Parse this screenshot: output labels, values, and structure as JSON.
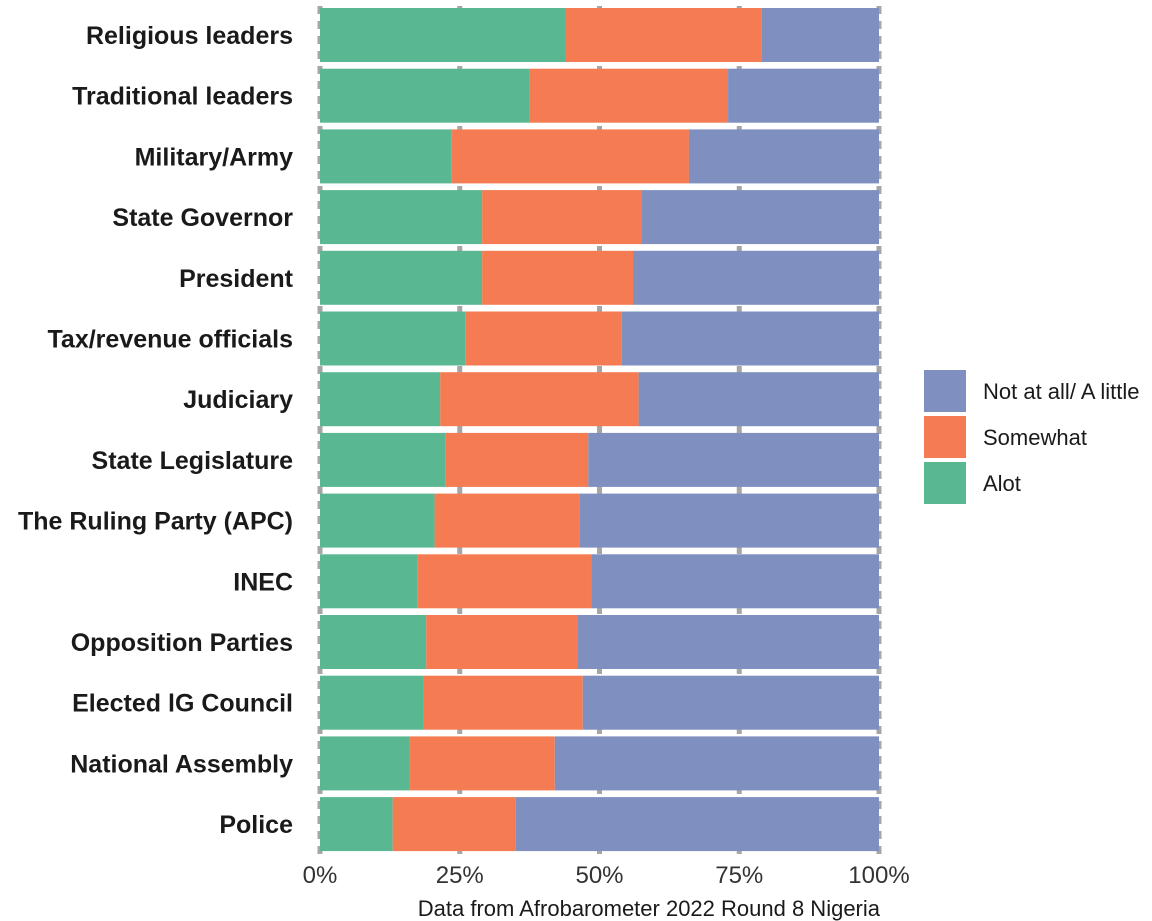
{
  "chart_data": {
    "type": "bar",
    "orientation": "horizontal",
    "stacked": "percent",
    "categories": [
      "Religious leaders",
      "Traditional leaders",
      "Military/Army",
      "State Governor",
      "President",
      "Tax/revenue officials",
      "Judiciary",
      "State Legislature",
      "The Ruling Party (APC)",
      "INEC",
      "Opposition Parties",
      "Elected lG Council",
      "National Assembly",
      "Police"
    ],
    "series": [
      {
        "name": "Alot",
        "color": "#59b892",
        "values": [
          44,
          37.5,
          23.5,
          29,
          29,
          26,
          21.5,
          22.5,
          20.5,
          17.5,
          19,
          18.5,
          16,
          13
        ]
      },
      {
        "name": "Somewhat",
        "color": "#f47b52",
        "values": [
          35,
          35.5,
          42.5,
          28.5,
          27,
          28,
          35.5,
          25.5,
          26,
          31,
          27,
          28.5,
          26,
          22
        ]
      },
      {
        "name": "Not at all/ A little",
        "color": "#7e8fc0",
        "values": [
          21,
          27,
          34,
          42.5,
          44,
          46,
          43,
          52,
          53.5,
          51.5,
          54,
          53,
          58,
          65
        ]
      }
    ],
    "x_ticks": [
      "0%",
      "25%",
      "50%",
      "75%",
      "100%"
    ],
    "xlim": [
      0,
      100
    ],
    "legend": {
      "position": "right",
      "entries": [
        "Not at all/ A little",
        "Somewhat",
        "Alot"
      ]
    },
    "caption": "Data from Afrobarometer 2022 Round 8 Nigeria",
    "grid": true
  }
}
